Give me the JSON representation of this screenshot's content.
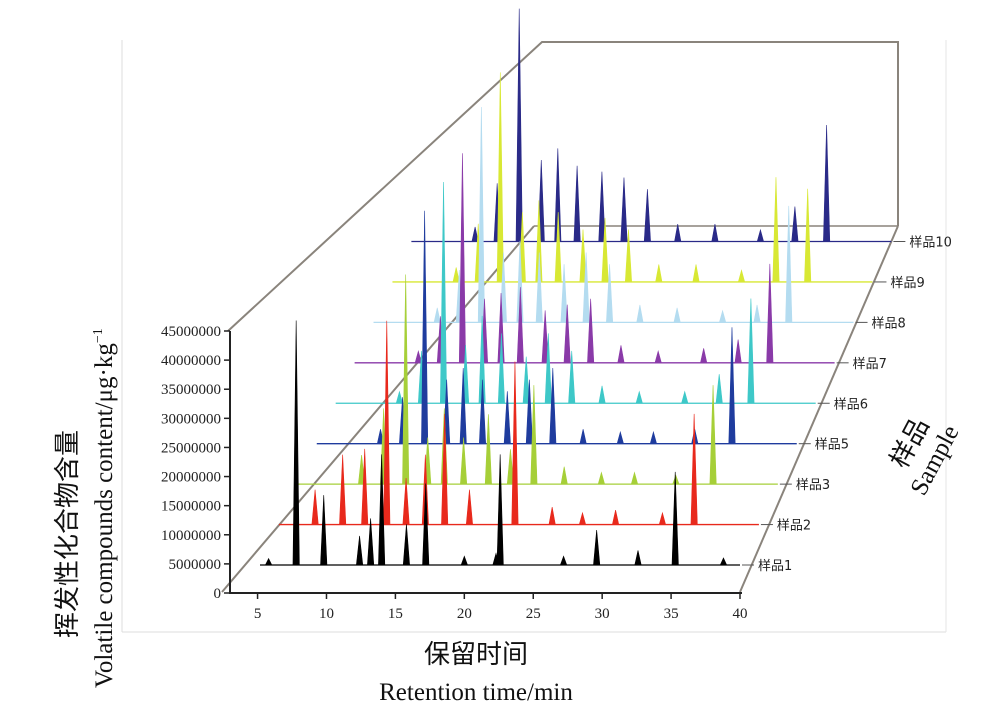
{
  "chart_data": {
    "type": "line",
    "projection": "3d-waterfall",
    "xlabel_zh": "保留时间",
    "xlabel_en": "Retention time/min",
    "ylabel_zh": "挥发性化合物含量",
    "ylabel_en": "Volatile compounds content/μg·kg",
    "ylabel_sup": "−1",
    "zlabel_zh": "样品",
    "zlabel_en": "Sample",
    "x_ticks": [
      "5",
      "10",
      "15",
      "20",
      "25",
      "30",
      "35",
      "40"
    ],
    "y_ticks": [
      "0",
      "5000000",
      "10000000",
      "15000000",
      "20000000",
      "25000000",
      "30000000",
      "35000000",
      "40000000",
      "45000000"
    ],
    "xlim": [
      3,
      40
    ],
    "ylim": [
      0,
      45000000
    ],
    "series": [
      {
        "name": "样品1",
        "color": "#000000",
        "peaks": [
          [
            5.8,
            1100000
          ],
          [
            7.8,
            42000000
          ],
          [
            9.8,
            12000000
          ],
          [
            12.4,
            5000000
          ],
          [
            13.2,
            8000000
          ],
          [
            14.0,
            19000000
          ],
          [
            15.8,
            7000000
          ],
          [
            17.2,
            14000000
          ],
          [
            20.0,
            1500000
          ],
          [
            22.3,
            2000000
          ],
          [
            22.6,
            19000000
          ],
          [
            27.2,
            1500000
          ],
          [
            29.6,
            6000000
          ],
          [
            32.6,
            2500000
          ],
          [
            35.3,
            16000000
          ],
          [
            38.8,
            1200000
          ]
        ]
      },
      {
        "name": "样品2",
        "color": "#e8291c",
        "peaks": [
          [
            7.8,
            6000000
          ],
          [
            9.8,
            12000000
          ],
          [
            11.4,
            13000000
          ],
          [
            13.0,
            35000000
          ],
          [
            14.4,
            8000000
          ],
          [
            15.8,
            12000000
          ],
          [
            17.2,
            19000000
          ],
          [
            19.0,
            6000000
          ],
          [
            22.3,
            28000000
          ],
          [
            25.0,
            3000000
          ],
          [
            27.2,
            2000000
          ],
          [
            29.6,
            2500000
          ],
          [
            33.0,
            2000000
          ],
          [
            35.3,
            19000000
          ]
        ]
      },
      {
        "name": "样品3",
        "color": "#a6cf38",
        "peaks": [
          [
            9.8,
            5000000
          ],
          [
            11.4,
            13000000
          ],
          [
            13.0,
            36000000
          ],
          [
            14.6,
            8000000
          ],
          [
            15.8,
            13000000
          ],
          [
            17.2,
            8000000
          ],
          [
            19.0,
            12000000
          ],
          [
            20.6,
            6000000
          ],
          [
            22.3,
            17000000
          ],
          [
            24.5,
            3000000
          ],
          [
            27.2,
            2000000
          ],
          [
            29.6,
            2000000
          ],
          [
            32.6,
            1500000
          ],
          [
            35.3,
            17000000
          ]
        ]
      },
      {
        "name": "样品5",
        "color": "#1f3c9e",
        "peaks": [
          [
            9.8,
            2500000
          ],
          [
            11.4,
            8000000
          ],
          [
            13.0,
            40000000
          ],
          [
            14.6,
            11000000
          ],
          [
            15.8,
            13000000
          ],
          [
            17.2,
            11000000
          ],
          [
            19.0,
            9000000
          ],
          [
            20.6,
            11000000
          ],
          [
            22.3,
            13000000
          ],
          [
            24.5,
            2500000
          ],
          [
            27.2,
            2000000
          ],
          [
            29.6,
            2000000
          ],
          [
            32.6,
            2500000
          ],
          [
            35.3,
            20000000
          ]
        ]
      },
      {
        "name": "样品6",
        "color": "#3ec8c8",
        "peaks": [
          [
            9.8,
            2000000
          ],
          [
            11.4,
            9000000
          ],
          [
            13.0,
            38000000
          ],
          [
            14.6,
            10000000
          ],
          [
            15.8,
            15000000
          ],
          [
            17.2,
            12000000
          ],
          [
            19.0,
            8000000
          ],
          [
            20.6,
            12000000
          ],
          [
            22.3,
            9000000
          ],
          [
            24.5,
            3000000
          ],
          [
            27.2,
            2000000
          ],
          [
            30.5,
            2000000
          ],
          [
            33.0,
            5000000
          ],
          [
            35.3,
            18000000
          ]
        ]
      },
      {
        "name": "样品7",
        "color": "#8a3aa8",
        "peaks": [
          [
            9.8,
            2000000
          ],
          [
            11.4,
            8000000
          ],
          [
            13.0,
            36000000
          ],
          [
            14.6,
            11000000
          ],
          [
            15.8,
            12000000
          ],
          [
            17.2,
            13000000
          ],
          [
            19.0,
            9000000
          ],
          [
            20.6,
            10000000
          ],
          [
            22.3,
            11000000
          ],
          [
            24.5,
            3000000
          ],
          [
            27.2,
            2000000
          ],
          [
            30.5,
            2500000
          ],
          [
            33.0,
            4000000
          ],
          [
            35.3,
            17000000
          ]
        ]
      },
      {
        "name": "样品8",
        "color": "#b4dcf0",
        "peaks": [
          [
            9.8,
            2500000
          ],
          [
            11.4,
            9000000
          ],
          [
            13.0,
            37000000
          ],
          [
            14.6,
            12000000
          ],
          [
            15.8,
            14000000
          ],
          [
            17.2,
            12000000
          ],
          [
            19.0,
            10000000
          ],
          [
            20.6,
            12000000
          ],
          [
            22.3,
            10000000
          ],
          [
            24.5,
            3000000
          ],
          [
            27.2,
            2500000
          ],
          [
            30.5,
            2000000
          ],
          [
            33.0,
            3000000
          ],
          [
            35.3,
            20000000
          ]
        ]
      },
      {
        "name": "样品9",
        "color": "#d8e834",
        "peaks": [
          [
            9.8,
            2500000
          ],
          [
            11.4,
            10000000
          ],
          [
            13.0,
            36000000
          ],
          [
            14.6,
            12000000
          ],
          [
            15.8,
            14000000
          ],
          [
            17.2,
            12000000
          ],
          [
            19.0,
            9000000
          ],
          [
            20.6,
            11000000
          ],
          [
            22.3,
            9000000
          ],
          [
            24.5,
            3000000
          ],
          [
            27.2,
            3000000
          ],
          [
            30.5,
            2000000
          ],
          [
            33.0,
            18000000
          ],
          [
            35.3,
            16000000
          ]
        ]
      },
      {
        "name": "样品10",
        "color": "#2a2a88",
        "peaks": [
          [
            9.8,
            2500000
          ],
          [
            11.4,
            10000000
          ],
          [
            13.0,
            40000000
          ],
          [
            14.6,
            14000000
          ],
          [
            15.8,
            16000000
          ],
          [
            17.2,
            13000000
          ],
          [
            19.0,
            12000000
          ],
          [
            20.6,
            11000000
          ],
          [
            22.3,
            9000000
          ],
          [
            24.5,
            3000000
          ],
          [
            27.2,
            3000000
          ],
          [
            30.5,
            2000000
          ],
          [
            33.0,
            6000000
          ],
          [
            35.3,
            20000000
          ]
        ]
      }
    ]
  }
}
